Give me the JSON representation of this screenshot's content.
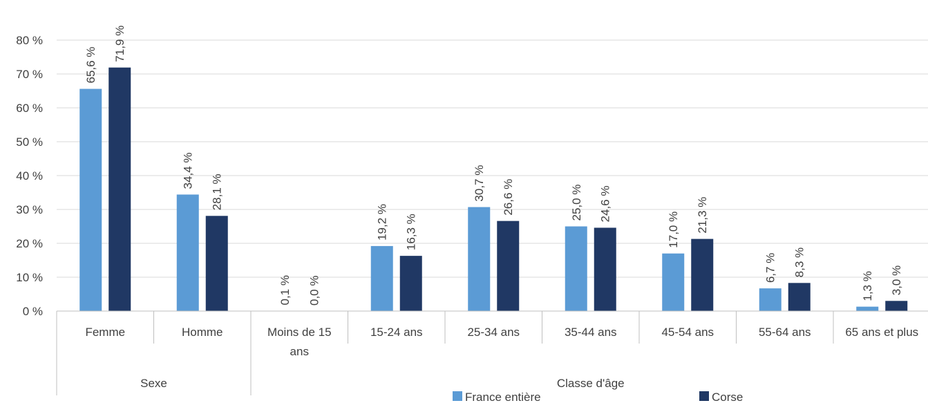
{
  "chart_data": {
    "type": "bar",
    "categories": [
      "Femme",
      "Homme",
      "Moins de 15 ans",
      "15-24 ans",
      "25-34 ans",
      "35-44 ans",
      "45-54 ans",
      "55-64 ans",
      "65 ans et plus"
    ],
    "category_lines": [
      [
        "Femme"
      ],
      [
        "Homme"
      ],
      [
        "Moins de 15",
        "ans"
      ],
      [
        "15-24 ans"
      ],
      [
        "25-34 ans"
      ],
      [
        "35-44 ans"
      ],
      [
        "45-54 ans"
      ],
      [
        "55-64 ans"
      ],
      [
        "65 ans et plus"
      ]
    ],
    "groups": [
      {
        "label": "Sexe",
        "start": 0,
        "end": 1
      },
      {
        "label": "Classe d'âge",
        "start": 2,
        "end": 8
      }
    ],
    "series": [
      {
        "name": "France entière",
        "color": "#5b9bd5",
        "values": [
          65.6,
          34.4,
          0.1,
          19.2,
          30.7,
          25.0,
          17.0,
          6.7,
          1.3
        ],
        "labels": [
          "65,6 %",
          "34,4 %",
          "0,1 %",
          "19,2 %",
          "30,7 %",
          "25,0 %",
          "17,0 %",
          "6,7 %",
          "1,3 %"
        ]
      },
      {
        "name": "Corse",
        "color": "#203864",
        "values": [
          71.9,
          28.1,
          0.0,
          16.3,
          26.6,
          24.6,
          21.3,
          8.3,
          3.0
        ],
        "labels": [
          "71,9 %",
          "28,1 %",
          "0,0 %",
          "16,3 %",
          "26,6 %",
          "24,6 %",
          "21,3 %",
          "8,3 %",
          "3,0 %"
        ]
      }
    ],
    "ylim": [
      0,
      80
    ],
    "yticks": [
      {
        "value": 0,
        "label": "0 %"
      },
      {
        "value": 10,
        "label": "10 %"
      },
      {
        "value": 20,
        "label": "20 %"
      },
      {
        "value": 30,
        "label": "30 %"
      },
      {
        "value": 40,
        "label": "40 %"
      },
      {
        "value": 50,
        "label": "50 %"
      },
      {
        "value": 60,
        "label": "60 %"
      },
      {
        "value": 70,
        "label": "70 %"
      },
      {
        "value": 80,
        "label": "80 %"
      }
    ],
    "grid": true,
    "legend_position": "bottom-center",
    "title": "",
    "xlabel": "",
    "ylabel": ""
  }
}
